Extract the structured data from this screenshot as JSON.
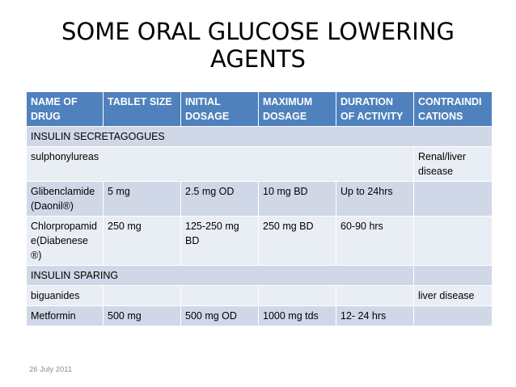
{
  "title_line1": "SOME ORAL GLUCOSE LOWERING",
  "title_line2": "AGENTS",
  "headers": [
    "NAME OF DRUG",
    "TABLET SIZE",
    "INITIAL DOSAGE",
    "MAXIMUM DOSAGE",
    "DURATION OF ACTIVITY",
    "CONTRAINDICATIONS"
  ],
  "sections": {
    "secretagogues": "INSULIN SECRETAGOGUES",
    "sparing": "INSULIN SPARING"
  },
  "rows": {
    "sulphonylureas": {
      "name": "sulphonylureas",
      "contraindications": "Renal/liver disease"
    },
    "glibenclamide": {
      "name": "Glibenclamide (Daonil®)",
      "tablet_size": "5 mg",
      "initial": "2.5 mg OD",
      "maximum": "10 mg BD",
      "duration": "Up to 24hrs",
      "contraindications": ""
    },
    "chlorpropamide": {
      "name": "Chlorpropamide(Diabenese®)",
      "tablet_size": "250 mg",
      "initial": "125-250 mg BD",
      "maximum": "250 mg BD",
      "duration": "60-90 hrs",
      "contraindications": ""
    },
    "biguanides": {
      "name": "biguanides",
      "contraindications": "liver disease"
    },
    "metformin": {
      "name": "Metformin",
      "tablet_size": "500 mg",
      "initial": "500 mg OD",
      "maximum": "1000 mg tds",
      "duration": "12- 24 hrs",
      "contraindications": ""
    }
  },
  "footer_date": "26 July 2011"
}
